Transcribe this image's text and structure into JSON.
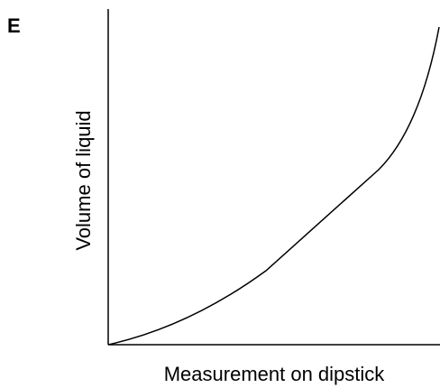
{
  "panel_label": "E",
  "x_axis_label": "Measurement on dipstick",
  "y_axis_label": "Volume of liquid"
}
